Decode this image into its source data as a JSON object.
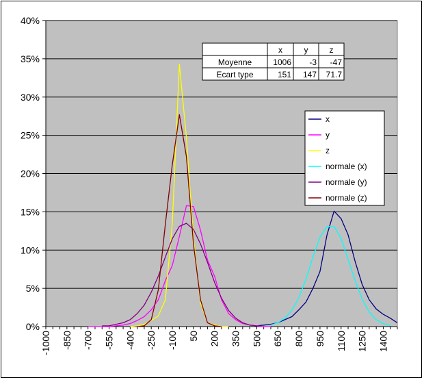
{
  "chart_data": {
    "type": "line",
    "title": "",
    "xlabel": "",
    "ylabel": "",
    "xlim": [
      -1000,
      1500
    ],
    "ylim": [
      0,
      0.4
    ],
    "grid": true,
    "legend_position": "right",
    "y_ticks": [
      "0%",
      "5%",
      "10%",
      "15%",
      "20%",
      "25%",
      "30%",
      "35%",
      "40%"
    ],
    "x_ticks": [
      "-1000",
      "-850",
      "-700",
      "-550",
      "-400",
      "-250",
      "-100",
      "50",
      "200",
      "350",
      "500",
      "650",
      "800",
      "950",
      "1100",
      "1250",
      "1400"
    ],
    "stats_table": {
      "headers": [
        "",
        "x",
        "y",
        "z"
      ],
      "rows": [
        [
          "Moyenne",
          "1006",
          "-3",
          "-47"
        ],
        [
          "Ecart type",
          "151",
          "147",
          "71.7"
        ]
      ]
    },
    "series": [
      {
        "name": "x",
        "color": "#000080",
        "x": [
          500,
          550,
          600,
          650,
          700,
          750,
          800,
          850,
          900,
          950,
          1000,
          1050,
          1100,
          1150,
          1200,
          1250,
          1300,
          1350,
          1400,
          1450,
          1500
        ],
        "y": [
          0.001,
          0.002,
          0.003,
          0.005,
          0.009,
          0.013,
          0.022,
          0.032,
          0.05,
          0.072,
          0.12,
          0.151,
          0.141,
          0.12,
          0.085,
          0.055,
          0.035,
          0.023,
          0.016,
          0.011,
          0.005
        ]
      },
      {
        "name": "y",
        "color": "#ff00ff",
        "x": [
          -700,
          -650,
          -600,
          -550,
          -500,
          -450,
          -400,
          -350,
          -300,
          -250,
          -200,
          -150,
          -100,
          -50,
          0,
          50,
          100,
          150,
          200,
          250,
          300,
          350,
          400,
          450,
          500,
          550,
          600
        ],
        "y": [
          0,
          0,
          0,
          0,
          0.001,
          0.002,
          0.004,
          0.008,
          0.013,
          0.022,
          0.035,
          0.06,
          0.08,
          0.118,
          0.158,
          0.157,
          0.126,
          0.087,
          0.066,
          0.035,
          0.017,
          0.009,
          0.004,
          0.002,
          0.001,
          0,
          0
        ]
      },
      {
        "name": "z",
        "color": "#ffff00",
        "x": [
          -400,
          -350,
          -300,
          -250,
          -200,
          -150,
          -100,
          -50,
          0,
          50,
          100,
          150,
          200,
          250,
          300
        ],
        "y": [
          0,
          0.001,
          0.003,
          0.008,
          0.014,
          0.035,
          0.135,
          0.343,
          0.247,
          0.115,
          0.031,
          0.005,
          0.002,
          0,
          0
        ]
      },
      {
        "name": "normale (x)",
        "color": "#00ffff",
        "x": [
          600,
          650,
          700,
          750,
          800,
          850,
          900,
          950,
          1000,
          1050,
          1100,
          1150,
          1200,
          1250,
          1300,
          1350,
          1400,
          1450
        ],
        "y": [
          0.002,
          0.005,
          0.011,
          0.021,
          0.038,
          0.062,
          0.091,
          0.117,
          0.131,
          0.131,
          0.115,
          0.088,
          0.06,
          0.036,
          0.019,
          0.009,
          0.004,
          0.001
        ]
      },
      {
        "name": "normale (y)",
        "color": "#800080",
        "x": [
          -600,
          -550,
          -500,
          -450,
          -400,
          -350,
          -300,
          -250,
          -200,
          -150,
          -100,
          -50,
          0,
          50,
          100,
          150,
          200,
          250,
          300,
          350,
          400,
          450,
          500
        ],
        "y": [
          0.001,
          0.001,
          0.003,
          0.005,
          0.009,
          0.017,
          0.028,
          0.045,
          0.066,
          0.091,
          0.115,
          0.131,
          0.135,
          0.127,
          0.108,
          0.084,
          0.058,
          0.037,
          0.021,
          0.011,
          0.005,
          0.002,
          0.001
        ]
      },
      {
        "name": "normale (z)",
        "color": "#800000",
        "x": [
          -350,
          -300,
          -250,
          -200,
          -150,
          -100,
          -50,
          0,
          50,
          100,
          150,
          200,
          250
        ],
        "y": [
          0,
          0.001,
          0.009,
          0.048,
          0.134,
          0.212,
          0.277,
          0.222,
          0.108,
          0.035,
          0.005,
          0.001,
          0
        ]
      }
    ]
  }
}
